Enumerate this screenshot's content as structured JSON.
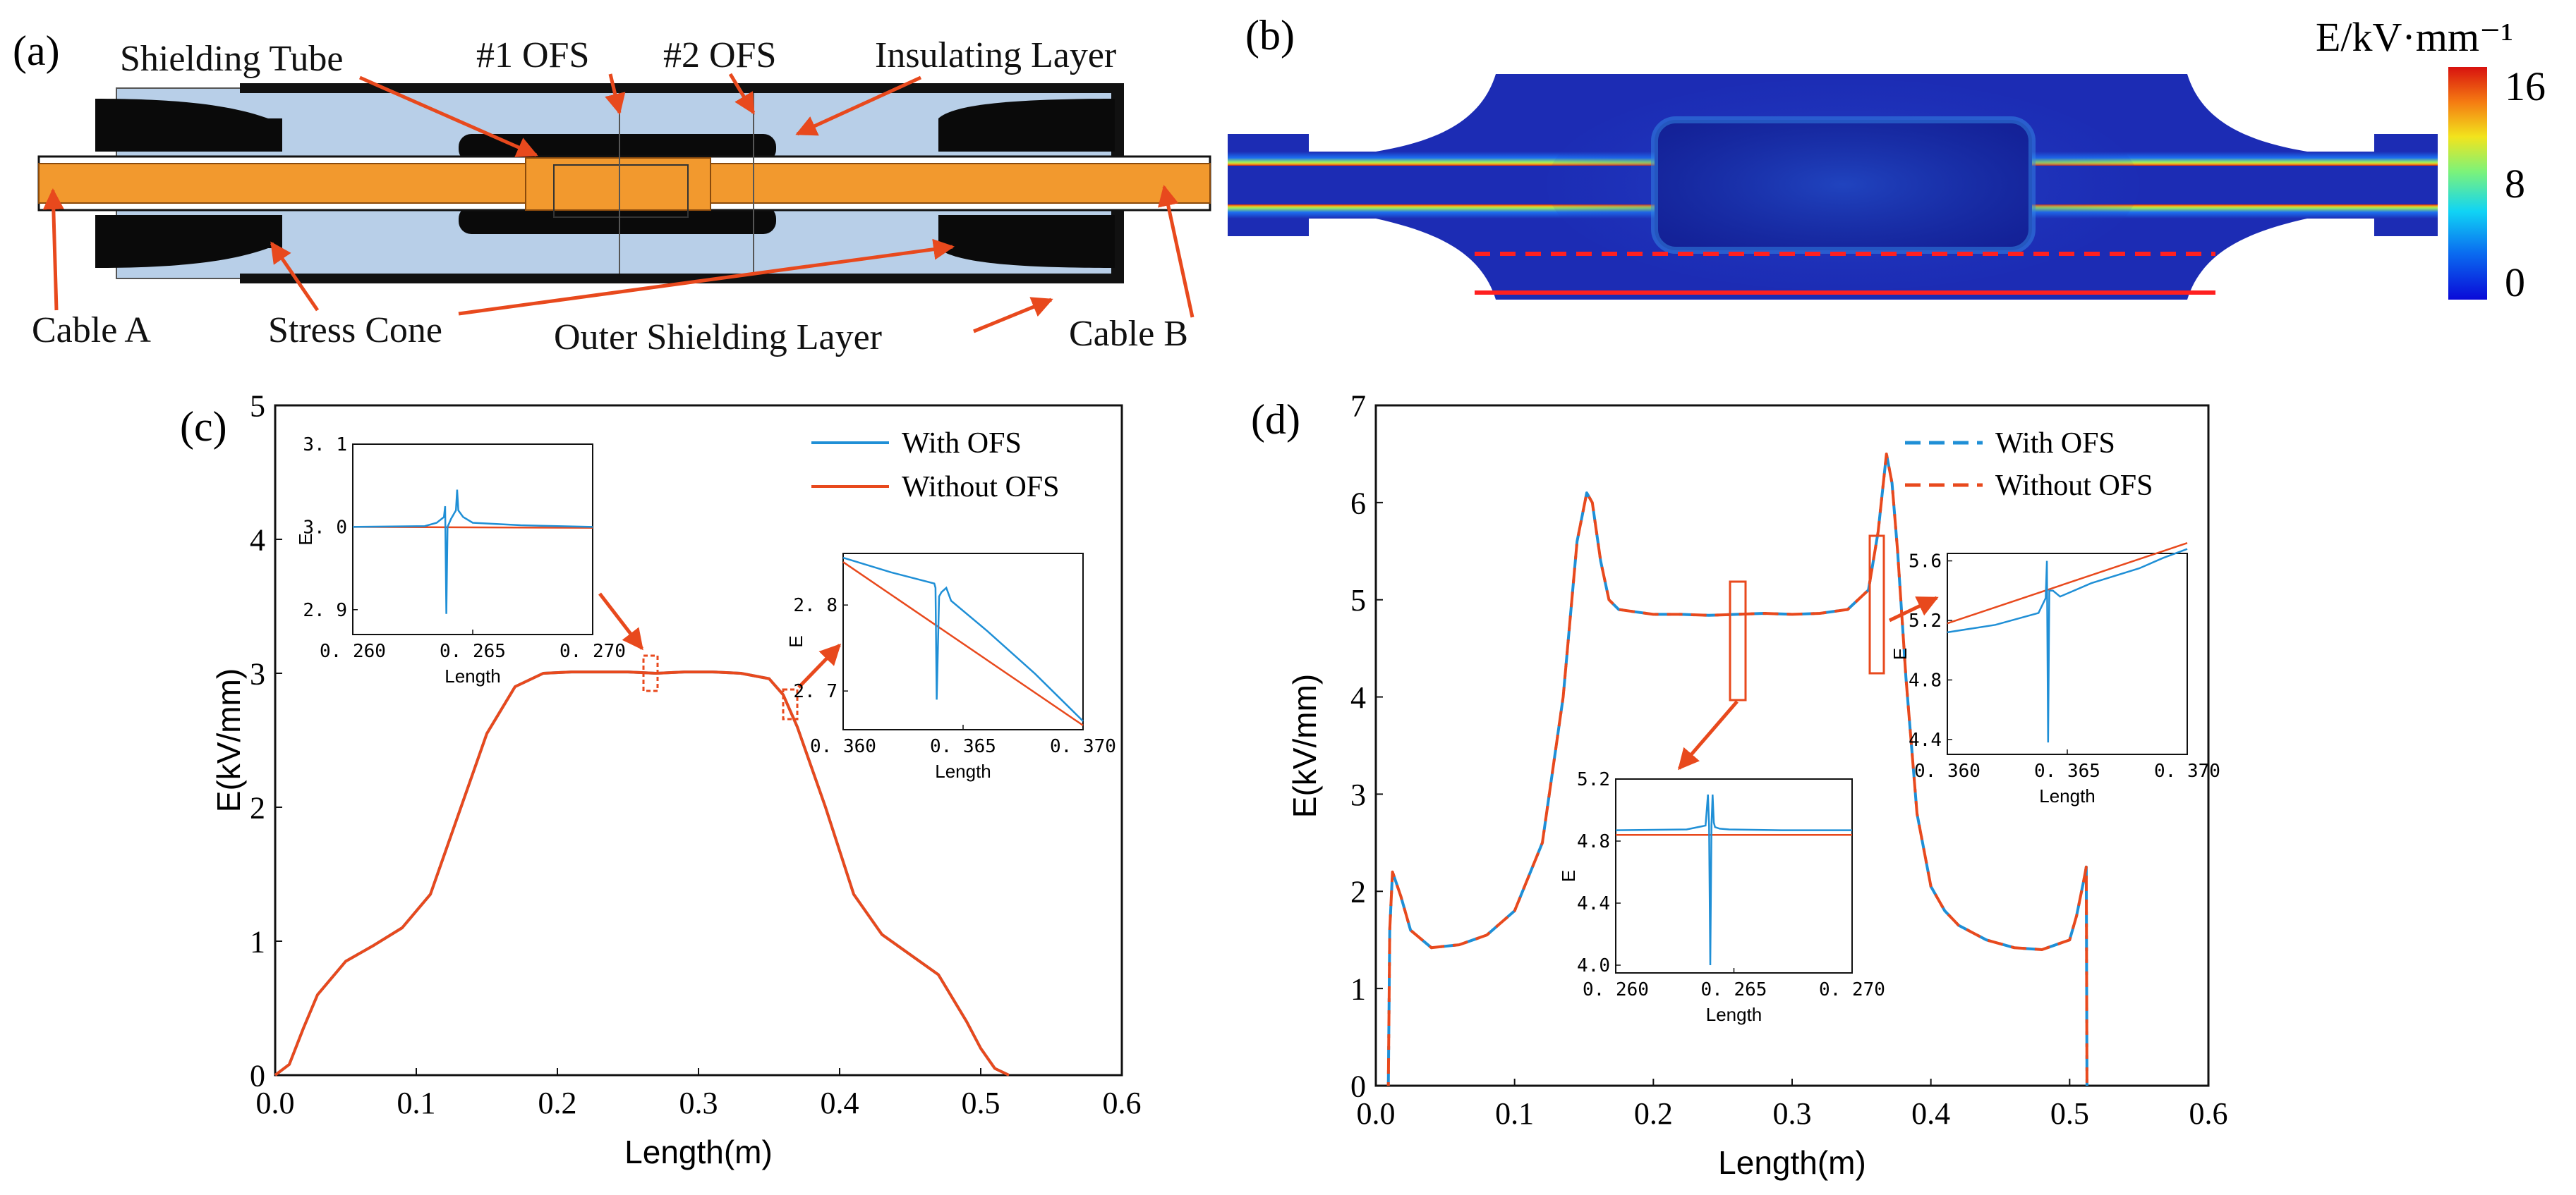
{
  "panel_a": {
    "tag": "(a)",
    "labels": {
      "shielding_tube": "Shielding Tube",
      "ofs1": "#1 OFS",
      "ofs2": "#2 OFS",
      "insulating_layer": "Insulating Layer",
      "cable_a": "Cable A",
      "stress_cone": "Stress Cone",
      "outer_shielding": "Outer Shielding Layer",
      "cable_b": "Cable B"
    },
    "colors": {
      "insulation": "#b8cfe8",
      "conductor": "#f2992e",
      "stress": "#0a0a0a",
      "arrow": "#e8491d"
    }
  },
  "panel_b": {
    "tag": "(b)",
    "colorbar": {
      "title": "E/kV·mm⁻¹",
      "max": "16",
      "mid": "8",
      "min": "0"
    },
    "colors": {
      "field_low": "#1f2db8",
      "field_high": "#e22a16",
      "line": "#ff2020"
    }
  },
  "chart_data": [
    {
      "id": "c",
      "tag": "(c)",
      "type": "line",
      "xlabel": "Length(m)",
      "ylabel": "E(kV/mm)",
      "xlim": [
        0,
        0.6
      ],
      "ylim": [
        0,
        5
      ],
      "xticks": [
        "0.0",
        "0.1",
        "0.2",
        "0.3",
        "0.4",
        "0.5",
        "0.6"
      ],
      "yticks": [
        "0",
        "1",
        "2",
        "3",
        "4",
        "5"
      ],
      "legend_position": "top-right",
      "series": [
        {
          "name": "With OFS",
          "color": "#1f8fd6",
          "style": "solid",
          "x": [
            0,
            0.01,
            0.02,
            0.03,
            0.05,
            0.07,
            0.09,
            0.11,
            0.13,
            0.15,
            0.17,
            0.19,
            0.21,
            0.23,
            0.25,
            0.27,
            0.29,
            0.31,
            0.33,
            0.35,
            0.36,
            0.37,
            0.39,
            0.41,
            0.43,
            0.45,
            0.47,
            0.49,
            0.5,
            0.51,
            0.52
          ],
          "y": [
            0,
            0.08,
            0.35,
            0.6,
            0.85,
            0.97,
            1.1,
            1.35,
            1.95,
            2.55,
            2.9,
            3.0,
            3.01,
            3.01,
            3.01,
            3.0,
            3.01,
            3.01,
            3.0,
            2.96,
            2.84,
            2.6,
            2.0,
            1.35,
            1.05,
            0.9,
            0.75,
            0.4,
            0.2,
            0.05,
            0
          ]
        },
        {
          "name": "Without OFS",
          "color": "#e8491d",
          "style": "solid",
          "x": [
            0,
            0.01,
            0.02,
            0.03,
            0.05,
            0.07,
            0.09,
            0.11,
            0.13,
            0.15,
            0.17,
            0.19,
            0.21,
            0.23,
            0.25,
            0.27,
            0.29,
            0.31,
            0.33,
            0.35,
            0.36,
            0.37,
            0.39,
            0.41,
            0.43,
            0.45,
            0.47,
            0.49,
            0.5,
            0.51,
            0.52
          ],
          "y": [
            0,
            0.08,
            0.35,
            0.6,
            0.85,
            0.97,
            1.1,
            1.35,
            1.95,
            2.55,
            2.9,
            3.0,
            3.01,
            3.01,
            3.01,
            3.0,
            3.01,
            3.01,
            3.0,
            2.96,
            2.84,
            2.6,
            2.0,
            1.35,
            1.05,
            0.9,
            0.75,
            0.4,
            0.2,
            0.05,
            0
          ]
        }
      ],
      "insets": [
        {
          "xlabel": "Length",
          "ylabel": "E",
          "xlim": [
            0.26,
            0.27
          ],
          "ylim": [
            2.87,
            3.1
          ],
          "xticks": [
            "0. 260",
            "0. 265",
            "0. 270"
          ],
          "yticks": [
            "2. 9",
            "3. 0",
            "3. 1"
          ],
          "series": [
            {
              "name": "With OFS",
              "x": [
                0.26,
                0.263,
                0.2635,
                0.2638,
                0.26385,
                0.2639,
                0.26395,
                0.2641,
                0.2643,
                0.26435,
                0.2644,
                0.2646,
                0.265,
                0.267,
                0.27
              ],
              "y": [
                3.0,
                3.001,
                3.005,
                3.012,
                3.025,
                2.895,
                3.0,
                3.01,
                3.02,
                3.045,
                3.02,
                3.012,
                3.005,
                3.002,
                3.0
              ]
            },
            {
              "name": "Without OFS",
              "x": [
                0.26,
                0.27
              ],
              "y": [
                3.0,
                2.999
              ]
            }
          ]
        },
        {
          "xlabel": "Length",
          "ylabel": "E",
          "xlim": [
            0.36,
            0.37
          ],
          "ylim": [
            2.655,
            2.86
          ],
          "xticks": [
            "0. 360",
            "0. 365",
            "0. 370"
          ],
          "yticks": [
            "2. 7",
            "2. 8"
          ],
          "series": [
            {
              "name": "With OFS",
              "x": [
                0.36,
                0.362,
                0.3638,
                0.36385,
                0.3639,
                0.364,
                0.3641,
                0.3643,
                0.3645,
                0.366,
                0.368,
                0.37
              ],
              "y": [
                2.855,
                2.838,
                2.825,
                2.82,
                2.69,
                2.81,
                2.815,
                2.82,
                2.805,
                2.77,
                2.72,
                2.665
              ]
            },
            {
              "name": "Without OFS",
              "x": [
                0.36,
                0.37
              ],
              "y": [
                2.85,
                2.66
              ]
            }
          ]
        }
      ]
    },
    {
      "id": "d",
      "tag": "(d)",
      "type": "line",
      "xlabel": "Length(m)",
      "ylabel": "E(kV/mm)",
      "xlim": [
        0,
        0.6
      ],
      "ylim": [
        0,
        7
      ],
      "xticks": [
        "0.0",
        "0.1",
        "0.2",
        "0.3",
        "0.4",
        "0.5",
        "0.6"
      ],
      "yticks": [
        "0",
        "1",
        "2",
        "3",
        "4",
        "5",
        "6",
        "7"
      ],
      "legend_position": "top-right",
      "series": [
        {
          "name": "With OFS",
          "color": "#1f8fd6",
          "style": "dashed",
          "x": [
            0.009,
            0.01,
            0.012,
            0.018,
            0.025,
            0.04,
            0.06,
            0.08,
            0.1,
            0.12,
            0.135,
            0.145,
            0.152,
            0.156,
            0.162,
            0.168,
            0.175,
            0.185,
            0.2,
            0.22,
            0.24,
            0.26,
            0.28,
            0.3,
            0.32,
            0.34,
            0.355,
            0.362,
            0.368,
            0.372,
            0.376,
            0.382,
            0.39,
            0.4,
            0.41,
            0.42,
            0.44,
            0.46,
            0.48,
            0.5,
            0.505,
            0.51,
            0.512,
            0.5125
          ],
          "y": [
            0,
            1.6,
            2.2,
            1.95,
            1.6,
            1.42,
            1.45,
            1.55,
            1.8,
            2.5,
            4.0,
            5.6,
            6.1,
            6.0,
            5.4,
            5.0,
            4.9,
            4.88,
            4.85,
            4.85,
            4.84,
            4.85,
            4.86,
            4.85,
            4.86,
            4.9,
            5.1,
            5.7,
            6.5,
            6.2,
            5.5,
            4.2,
            2.8,
            2.05,
            1.8,
            1.65,
            1.5,
            1.42,
            1.4,
            1.5,
            1.75,
            2.1,
            2.25,
            0
          ]
        },
        {
          "name": "Without OFS",
          "color": "#e8491d",
          "style": "dashed",
          "x": [
            0.009,
            0.01,
            0.012,
            0.018,
            0.025,
            0.04,
            0.06,
            0.08,
            0.1,
            0.12,
            0.135,
            0.145,
            0.152,
            0.156,
            0.162,
            0.168,
            0.175,
            0.185,
            0.2,
            0.22,
            0.24,
            0.26,
            0.28,
            0.3,
            0.32,
            0.34,
            0.355,
            0.362,
            0.368,
            0.372,
            0.376,
            0.382,
            0.39,
            0.4,
            0.41,
            0.42,
            0.44,
            0.46,
            0.48,
            0.5,
            0.505,
            0.51,
            0.512,
            0.5125
          ],
          "y": [
            0,
            1.6,
            2.2,
            1.95,
            1.6,
            1.42,
            1.45,
            1.55,
            1.8,
            2.5,
            4.0,
            5.6,
            6.1,
            6.0,
            5.4,
            5.0,
            4.9,
            4.88,
            4.85,
            4.85,
            4.84,
            4.85,
            4.86,
            4.85,
            4.86,
            4.9,
            5.1,
            5.7,
            6.5,
            6.2,
            5.5,
            4.2,
            2.8,
            2.05,
            1.8,
            1.65,
            1.5,
            1.42,
            1.4,
            1.5,
            1.75,
            2.1,
            2.25,
            0
          ]
        }
      ],
      "insets": [
        {
          "xlabel": "Length",
          "ylabel": "E",
          "xlim": [
            0.26,
            0.27
          ],
          "ylim": [
            3.95,
            5.2
          ],
          "xticks": [
            "0. 260",
            "0. 265",
            "0. 270"
          ],
          "yticks": [
            "4.0",
            "4.4",
            "4.8",
            "5.2"
          ],
          "series": [
            {
              "name": "With OFS",
              "x": [
                0.26,
                0.263,
                0.2638,
                0.2639,
                0.26395,
                0.264,
                0.26405,
                0.2641,
                0.26415,
                0.2642,
                0.2644,
                0.2648,
                0.267,
                0.27
              ],
              "y": [
                4.87,
                4.875,
                4.9,
                5.1,
                4.9,
                4.0,
                4.9,
                5.1,
                4.92,
                4.89,
                4.88,
                4.875,
                4.87,
                4.87
              ]
            },
            {
              "name": "Without OFS",
              "x": [
                0.26,
                0.27
              ],
              "y": [
                4.84,
                4.84
              ]
            }
          ]
        },
        {
          "xlabel": "Length",
          "ylabel": "E",
          "xlim": [
            0.36,
            0.37
          ],
          "ylim": [
            4.3,
            5.65
          ],
          "xticks": [
            "0. 360",
            "0. 365",
            "0. 370"
          ],
          "yticks": [
            "4.4",
            "4.8",
            "5.2",
            "5.6"
          ],
          "series": [
            {
              "name": "With OFS",
              "x": [
                0.36,
                0.362,
                0.3638,
                0.3641,
                0.36415,
                0.3642,
                0.36425,
                0.3644,
                0.3647,
                0.366,
                0.368,
                0.369,
                0.37
              ],
              "y": [
                5.12,
                5.17,
                5.25,
                5.35,
                5.6,
                4.38,
                5.4,
                5.4,
                5.36,
                5.45,
                5.55,
                5.62,
                5.68
              ]
            },
            {
              "name": "Without OFS",
              "x": [
                0.36,
                0.37
              ],
              "y": [
                5.18,
                5.72
              ]
            }
          ]
        }
      ]
    }
  ]
}
